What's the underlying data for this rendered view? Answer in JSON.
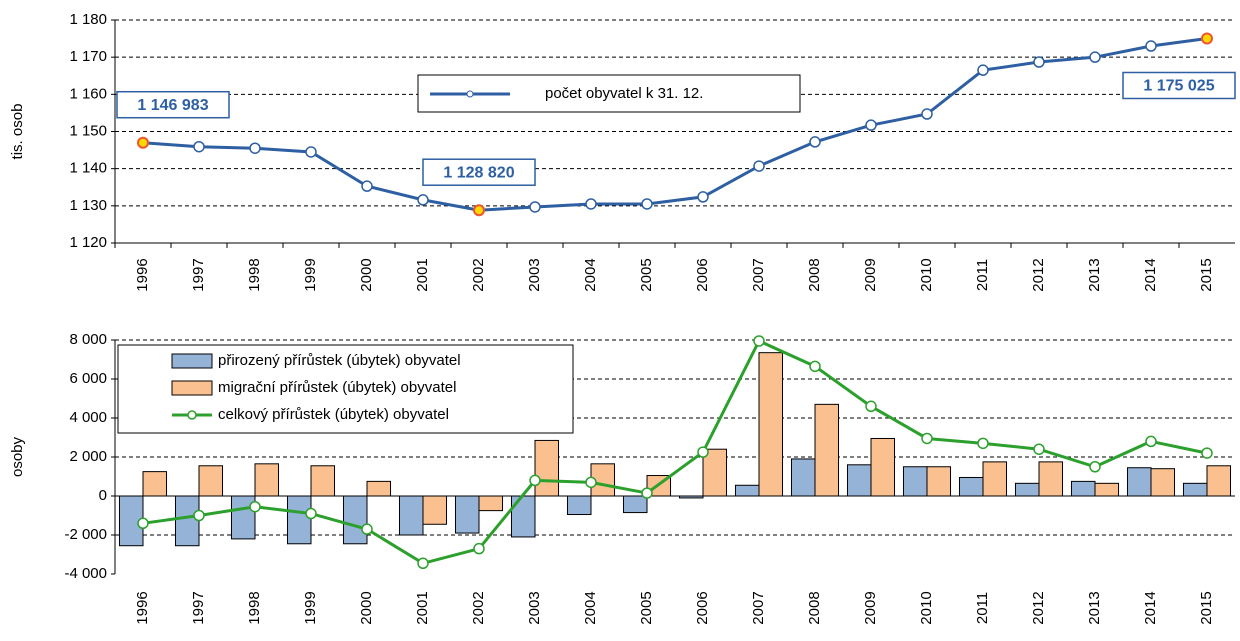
{
  "chart_data": [
    {
      "type": "line",
      "y_label": "tis. osob",
      "categories": [
        "1996",
        "1997",
        "1998",
        "1999",
        "2000",
        "2001",
        "2002",
        "2003",
        "2004",
        "2005",
        "2006",
        "2007",
        "2008",
        "2009",
        "2010",
        "2011",
        "2012",
        "2013",
        "2014",
        "2015"
      ],
      "series": [
        {
          "name": "počet obyvatel k 31. 12.",
          "color": "#2e5fa3",
          "values": [
            1146.983,
            1145.9,
            1145.5,
            1144.5,
            1135.3,
            1131.6,
            1128.82,
            1129.7,
            1130.5,
            1130.5,
            1132.4,
            1140.7,
            1147.2,
            1151.7,
            1154.7,
            1166.5,
            1168.7,
            1170.0,
            1173.0,
            1175.025
          ],
          "value_labels": [
            "1 146 983",
            null,
            null,
            null,
            null,
            null,
            "1 128 820",
            null,
            null,
            null,
            null,
            null,
            null,
            null,
            null,
            null,
            null,
            null,
            null,
            "1 175 025"
          ]
        }
      ],
      "ylim": [
        1120,
        1180
      ],
      "yticks": [
        {
          "value": 1120,
          "label": "1 120"
        },
        {
          "value": 1130,
          "label": "1 130"
        },
        {
          "value": 1140,
          "label": "1 140"
        },
        {
          "value": 1150,
          "label": "1 150"
        },
        {
          "value": 1160,
          "label": "1 160"
        },
        {
          "value": 1170,
          "label": "1 170"
        },
        {
          "value": 1180,
          "label": "1 180"
        }
      ],
      "grid": true
    },
    {
      "type": "bar",
      "y_label": "osoby",
      "categories": [
        "1996",
        "1997",
        "1998",
        "1999",
        "2000",
        "2001",
        "2002",
        "2003",
        "2004",
        "2005",
        "2006",
        "2007",
        "2008",
        "2009",
        "2010",
        "2011",
        "2012",
        "2013",
        "2014",
        "2015"
      ],
      "series": [
        {
          "name": "přirozený přírůstek (úbytek) obyvatel",
          "type": "bar",
          "color": "#95b3d7",
          "values": [
            -2550,
            -2550,
            -2200,
            -2450,
            -2450,
            -2000,
            -1900,
            -2100,
            -950,
            -850,
            -100,
            550,
            1900,
            1600,
            1500,
            950,
            650,
            750,
            1450,
            650
          ]
        },
        {
          "name": "migrační přírůstek (úbytek) obyvatel",
          "type": "bar",
          "color": "#fac090",
          "values": [
            1250,
            1550,
            1650,
            1550,
            750,
            -1450,
            -750,
            2850,
            1650,
            1050,
            2400,
            7350,
            4700,
            2950,
            1500,
            1750,
            1750,
            650,
            1400,
            1550
          ]
        },
        {
          "name": "celkový přírůstek (úbytek) obyvatel",
          "type": "line",
          "color": "#2ca02c",
          "values": [
            -1400,
            -1000,
            -550,
            -900,
            -1700,
            -3450,
            -2700,
            800,
            700,
            150,
            2250,
            7950,
            6650,
            4600,
            2950,
            2700,
            2400,
            1500,
            2800,
            2200
          ]
        }
      ],
      "ylim": [
        -4000,
        8000
      ],
      "yticks": [
        {
          "value": -4000,
          "label": "-4 000"
        },
        {
          "value": -2000,
          "label": "-2 000"
        },
        0,
        {
          "value": 2000,
          "label": "2 000"
        },
        {
          "value": 4000,
          "label": "4 000"
        },
        {
          "value": 6000,
          "label": "6 000"
        },
        {
          "value": 8000,
          "label": "8 000"
        }
      ],
      "grid": true
    }
  ]
}
